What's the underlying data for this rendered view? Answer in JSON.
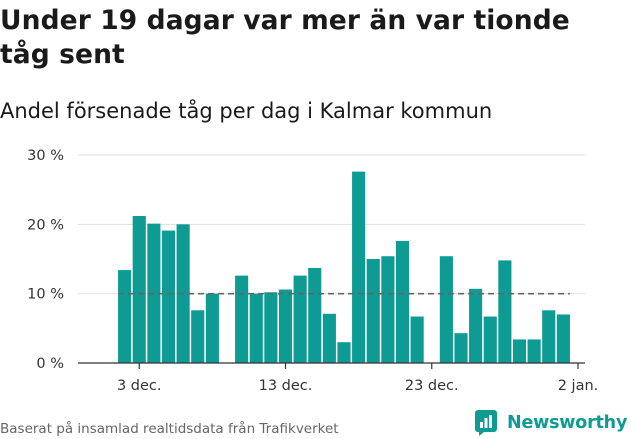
{
  "title": "Under 19 dagar var mer än var tionde tåg sent",
  "subtitle": "Andel försenade tåg per dag i Kalmar kommun",
  "footer": {
    "source": "Baserat på insamlad realtidsdata från Trafikverket"
  },
  "brand": {
    "name": "Newsworthy",
    "icon": "newsworthy-logo-icon"
  },
  "colors": {
    "bar": "#0e9b93",
    "reference_line": "#666666",
    "grid": "#e0e0e0",
    "axis": "#333333"
  },
  "chart_data": {
    "type": "bar",
    "title": "Under 19 dagar var mer än var tionde tåg sent",
    "subtitle": "Andel försenade tåg per dag i Kalmar kommun",
    "xlabel": "",
    "ylabel": "",
    "y_unit": "%",
    "ylim": [
      0,
      30
    ],
    "y_ticks": [
      0,
      10,
      20,
      30
    ],
    "y_tick_labels": [
      "0 %",
      "10 %",
      "20 %",
      "30 %"
    ],
    "grid": true,
    "reference_line": 10,
    "x_range": [
      "2021-12-01",
      "2022-01-02"
    ],
    "x_ticks": [
      {
        "date": "2021-12-03",
        "label": "3 dec."
      },
      {
        "date": "2021-12-13",
        "label": "13 dec."
      },
      {
        "date": "2021-12-23",
        "label": "23 dec."
      },
      {
        "date": "2022-01-02",
        "label": "2 jan."
      }
    ],
    "points": [
      {
        "date": "2021-12-02",
        "value": 13.4
      },
      {
        "date": "2021-12-03",
        "value": 21.2
      },
      {
        "date": "2021-12-04",
        "value": 20.1
      },
      {
        "date": "2021-12-05",
        "value": 19.1
      },
      {
        "date": "2021-12-06",
        "value": 20.0
      },
      {
        "date": "2021-12-07",
        "value": 7.6
      },
      {
        "date": "2021-12-08",
        "value": 10.0
      },
      {
        "date": "2021-12-10",
        "value": 12.6
      },
      {
        "date": "2021-12-11",
        "value": 10.0
      },
      {
        "date": "2021-12-12",
        "value": 10.2
      },
      {
        "date": "2021-12-13",
        "value": 10.6
      },
      {
        "date": "2021-12-14",
        "value": 12.6
      },
      {
        "date": "2021-12-15",
        "value": 13.7
      },
      {
        "date": "2021-12-16",
        "value": 7.1
      },
      {
        "date": "2021-12-17",
        "value": 3.0
      },
      {
        "date": "2021-12-18",
        "value": 27.6
      },
      {
        "date": "2021-12-19",
        "value": 15.0
      },
      {
        "date": "2021-12-20",
        "value": 15.4
      },
      {
        "date": "2021-12-21",
        "value": 17.6
      },
      {
        "date": "2021-12-22",
        "value": 6.7
      },
      {
        "date": "2021-12-24",
        "value": 15.4
      },
      {
        "date": "2021-12-25",
        "value": 4.3
      },
      {
        "date": "2021-12-26",
        "value": 10.7
      },
      {
        "date": "2021-12-27",
        "value": 6.7
      },
      {
        "date": "2021-12-28",
        "value": 14.8
      },
      {
        "date": "2021-12-29",
        "value": 3.4
      },
      {
        "date": "2021-12-30",
        "value": 3.4
      },
      {
        "date": "2021-12-31",
        "value": 7.6
      },
      {
        "date": "2022-01-01",
        "value": 7.0
      }
    ]
  }
}
